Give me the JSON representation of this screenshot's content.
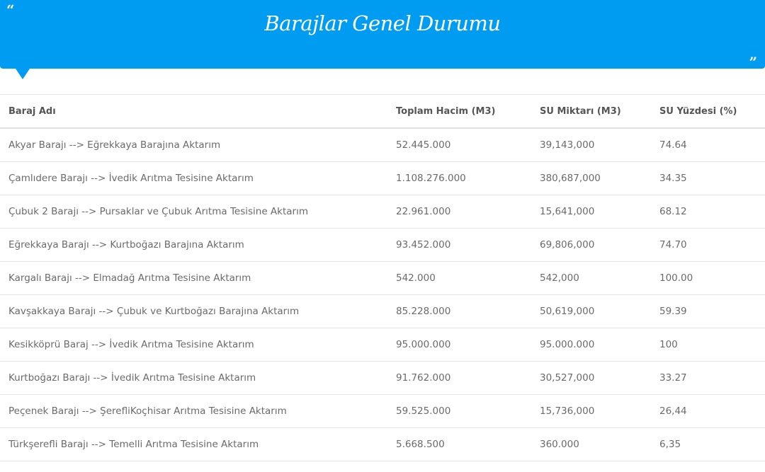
{
  "header": {
    "title": "Barajlar Genel Durumu",
    "open_quote": "“",
    "close_quote": "”",
    "accent": "#009cf2"
  },
  "table": {
    "columns": [
      "Baraj Adı",
      "Toplam Hacim (M3)",
      "SU Miktarı (M3)",
      "SU Yüzdesi (%)"
    ],
    "rows": [
      [
        "Akyar Barajı --> Eğrekkaya Barajına Aktarım",
        "52.445.000",
        "39,143,000",
        "74.64"
      ],
      [
        "Çamlıdere Barajı --> İvedik Arıtma Tesisine Aktarım",
        "1.108.276.000",
        "380,687,000",
        "34.35"
      ],
      [
        "Çubuk 2 Barajı --> Pursaklar ve Çubuk Arıtma Tesisine Aktarım",
        "22.961.000",
        "15,641,000",
        "68.12"
      ],
      [
        "Eğrekkaya Barajı --> Kurtboğazı Barajına Aktarım",
        "93.452.000",
        "69,806,000",
        "74.70"
      ],
      [
        "Kargalı Barajı --> Elmadağ Arıtma Tesisine Aktarım",
        "542.000",
        "542,000",
        "100.00"
      ],
      [
        "Kavşakkaya Barajı --> Çubuk ve Kurtboğazı Barajına Aktarım",
        "85.228.000",
        "50,619,000",
        "59.39"
      ],
      [
        "Kesikköprü Baraj --> İvedik Arıtma Tesisine Aktarım",
        "95.000.000",
        "95.000.000",
        "100"
      ],
      [
        "Kurtboğazı Barajı --> İvedik Arıtma Tesisine Aktarım",
        "91.762.000",
        "30,527,000",
        "33.27"
      ],
      [
        "Peçenek Barajı --> ŞerefliKoçhisar Arıtma Tesisine Aktarım",
        "59.525.000",
        "15,736,000",
        "26,44"
      ],
      [
        "Türkşerefli Barajı --> Temelli Arıtma Tesisine Aktarım",
        "5.668.500",
        "360.000",
        "6,35"
      ]
    ]
  }
}
